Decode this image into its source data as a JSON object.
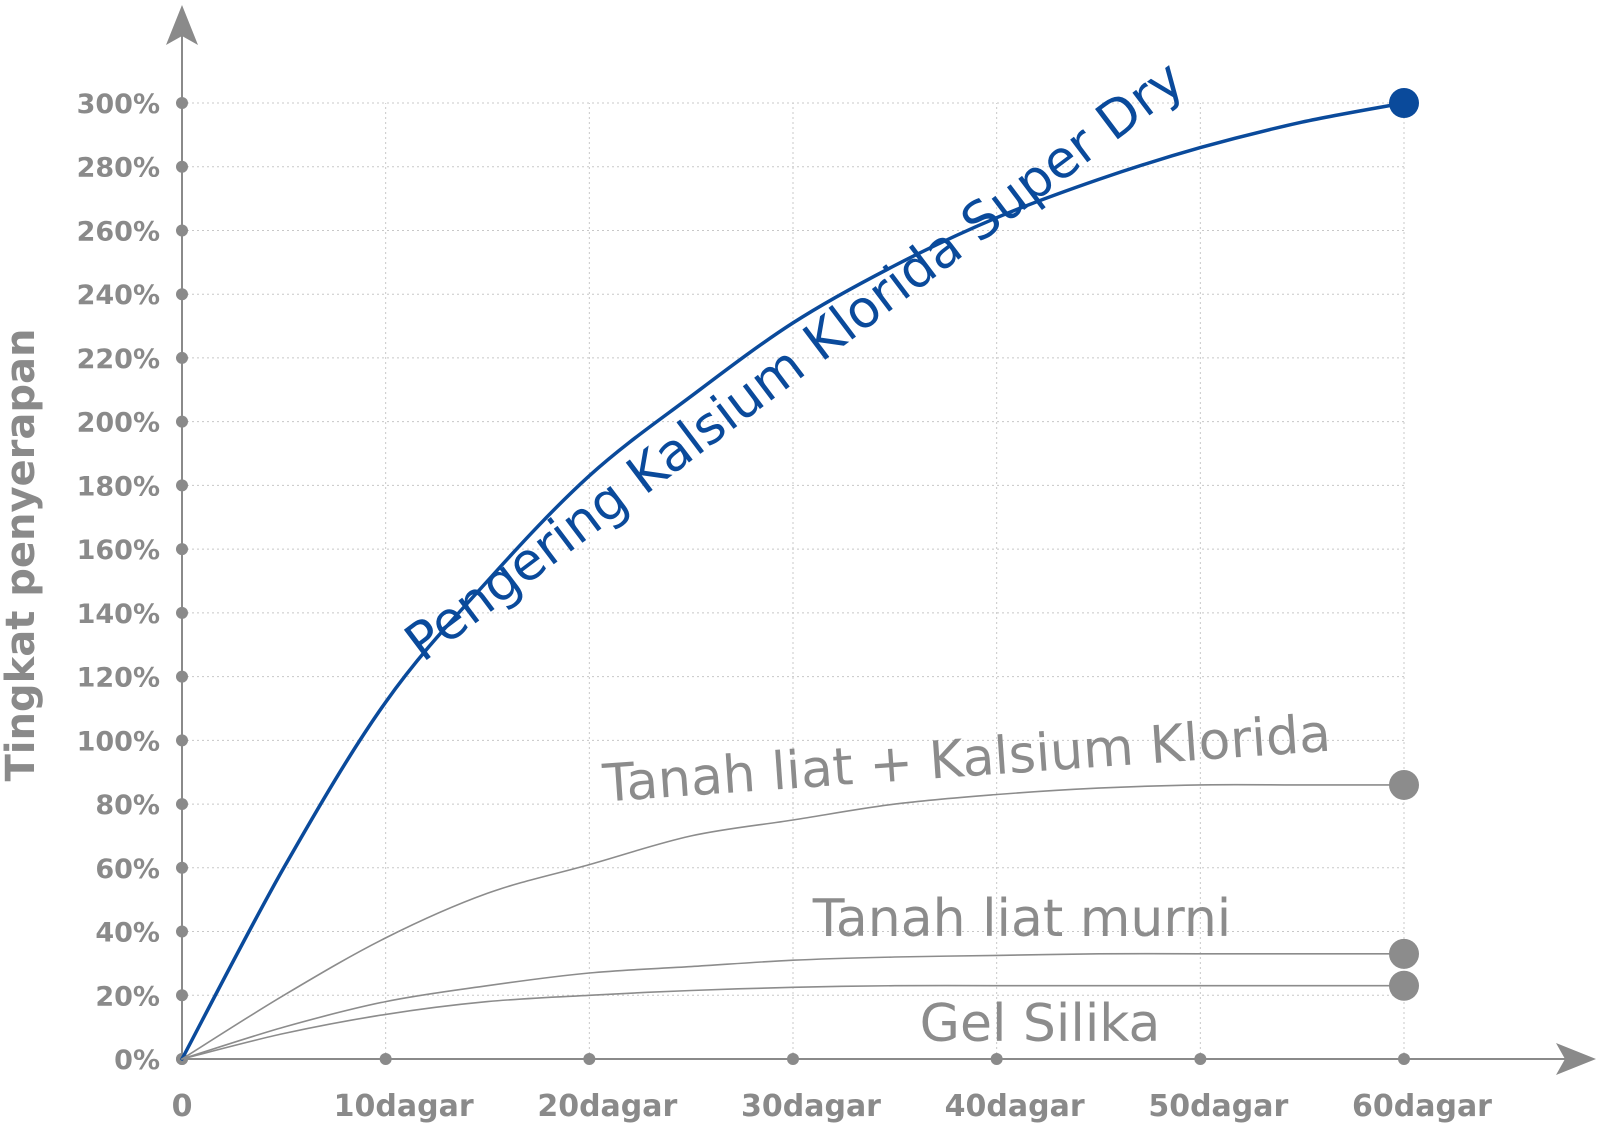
{
  "chart_data": {
    "type": "line",
    "ylabel": "Tingkat penyerapan",
    "xlabel": "",
    "title": "",
    "x_ticks": [
      "0",
      "10dagar",
      "20dagar",
      "30dagar",
      "40dagar",
      "50dagar",
      "60dagar"
    ],
    "x_tick_values": [
      0,
      10,
      20,
      30,
      40,
      50,
      60
    ],
    "y_ticks": [
      "0%",
      "20%",
      "40%",
      "60%",
      "80%",
      "100%",
      "120%",
      "140%",
      "160%",
      "180%",
      "200%",
      "220%",
      "240%",
      "260%",
      "280%",
      "300%"
    ],
    "y_tick_values": [
      0,
      20,
      40,
      60,
      80,
      100,
      120,
      140,
      160,
      180,
      200,
      220,
      240,
      260,
      280,
      300
    ],
    "xlim": [
      0,
      60
    ],
    "ylim": [
      0,
      300
    ],
    "grid": true,
    "series": [
      {
        "name": "Pengering Kalsium Klorida Super Dry",
        "color": "#0a4a9b",
        "x": [
          0,
          5,
          10,
          15,
          20,
          25,
          30,
          35,
          40,
          45,
          50,
          55,
          60
        ],
        "y": [
          0,
          60,
          112,
          150,
          183,
          208,
          231,
          249,
          264,
          276,
          286,
          294,
          300
        ]
      },
      {
        "name": "Tanah liat + Kalsium Klorida",
        "color": "#8c8c8c",
        "x": [
          0,
          5,
          10,
          15,
          20,
          25,
          30,
          35,
          40,
          45,
          50,
          55,
          60
        ],
        "y": [
          0,
          20,
          38,
          52,
          61,
          70,
          75,
          80,
          83,
          85,
          86,
          86,
          86
        ]
      },
      {
        "name": "Tanah liat murni",
        "color": "#8c8c8c",
        "x": [
          0,
          5,
          10,
          15,
          20,
          25,
          30,
          35,
          40,
          45,
          50,
          55,
          60
        ],
        "y": [
          0,
          10,
          18,
          23,
          27,
          29,
          31,
          32,
          32.5,
          33,
          33,
          33,
          33
        ]
      },
      {
        "name": "Gel Silika",
        "color": "#8c8c8c",
        "x": [
          0,
          5,
          10,
          15,
          20,
          25,
          30,
          35,
          40,
          45,
          50,
          55,
          60
        ],
        "y": [
          0,
          8,
          14,
          18,
          20,
          21.5,
          22.5,
          23,
          23,
          23,
          23,
          23,
          23
        ]
      }
    ]
  }
}
